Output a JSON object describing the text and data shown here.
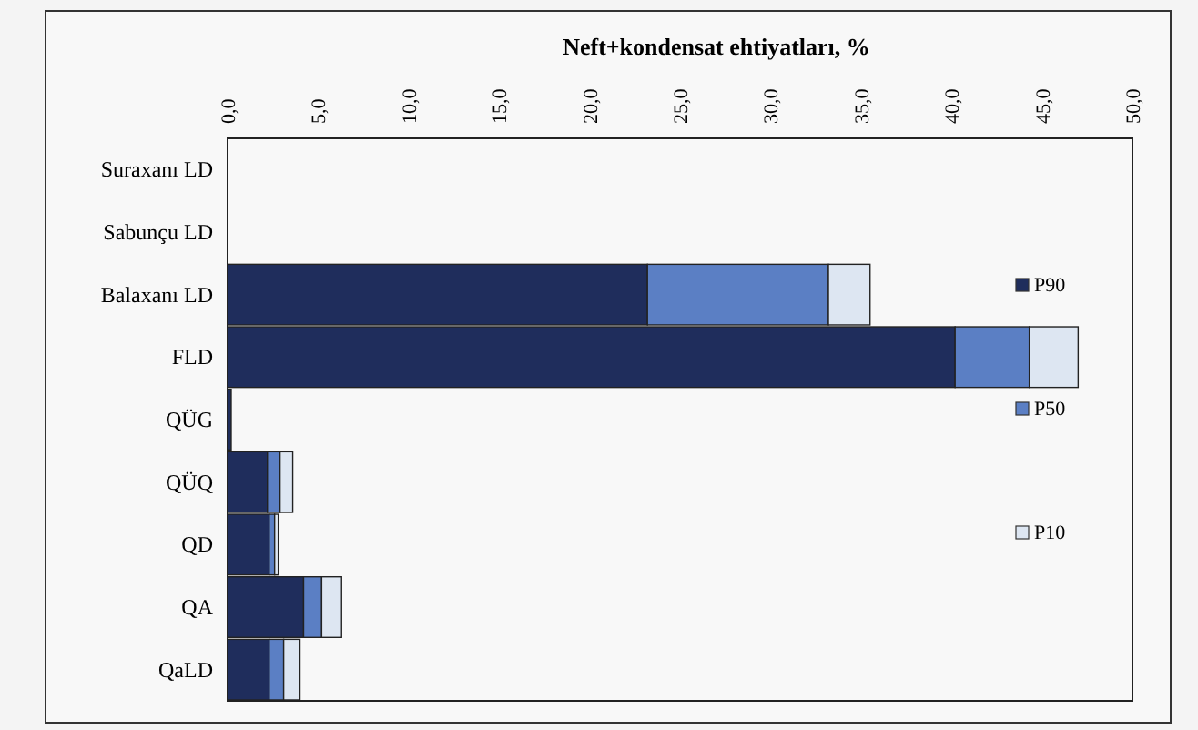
{
  "chart_data": {
    "type": "bar",
    "orientation": "horizontal",
    "stacked": true,
    "title": "Neft+kondensat ehtiyatları, %",
    "categories": [
      "Suraxanı LD",
      "Sabunçu LD",
      "Balaxanı LD",
      "FLD",
      "QÜG",
      "QÜQ",
      "QD",
      "QA",
      "QaLD"
    ],
    "series": [
      {
        "name": "P90",
        "color": "#1f2d5c",
        "values": [
          0,
          0,
          23.2,
          40.2,
          0.2,
          2.2,
          2.3,
          4.2,
          2.3
        ]
      },
      {
        "name": "P50",
        "color": "#5b7fc4",
        "values": [
          0,
          0,
          10.0,
          4.1,
          0,
          0.7,
          0.3,
          1.0,
          0.8
        ]
      },
      {
        "name": "P10",
        "color": "#dde6f2",
        "values": [
          0,
          0,
          2.3,
          2.7,
          0,
          0.7,
          0.2,
          1.1,
          0.9
        ]
      }
    ],
    "xlim": [
      0,
      50
    ],
    "xticks": [
      {
        "value": 0,
        "label": "0,0"
      },
      {
        "value": 5,
        "label": "5,0"
      },
      {
        "value": 10,
        "label": "10,0"
      },
      {
        "value": 15,
        "label": "15,0"
      },
      {
        "value": 20,
        "label": "20,0"
      },
      {
        "value": 25,
        "label": "25,0"
      },
      {
        "value": 30,
        "label": "30,0"
      },
      {
        "value": 35,
        "label": "35,0"
      },
      {
        "value": 40,
        "label": "40,0"
      },
      {
        "value": 45,
        "label": "45,0"
      },
      {
        "value": 50,
        "label": "50,0"
      }
    ],
    "legend": "right"
  }
}
